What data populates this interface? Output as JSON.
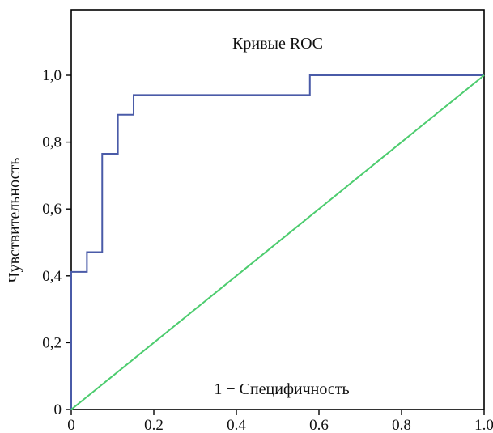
{
  "chart_data": {
    "type": "line",
    "title": "Кривые ROC",
    "xlabel": "1 − Специфичность",
    "ylabel": "Чувствительность",
    "xlim": [
      0,
      1
    ],
    "ylim": [
      0,
      1.2
    ],
    "grid": false,
    "x_ticks": [
      "0",
      "0.2",
      "0.4",
      "0.6",
      "0.8",
      "1.0"
    ],
    "y_ticks": [
      "0",
      "0,2",
      "0,4",
      "0,6",
      "0,8",
      "1,0"
    ],
    "series": [
      {
        "color": "#4a5ba8",
        "style": "step",
        "x": [
          0,
          0,
          0.038,
          0.038,
          0.075,
          0.075,
          0.113,
          0.113,
          0.151,
          0.151,
          0.578,
          0.578,
          1.0
        ],
        "y": [
          0,
          0.412,
          0.412,
          0.471,
          0.471,
          0.765,
          0.765,
          0.882,
          0.882,
          0.941,
          0.941,
          1.0,
          1.0
        ]
      },
      {
        "color": "#4ccc6e",
        "style": "line",
        "x": [
          0,
          1.0
        ],
        "y": [
          0,
          1.0
        ]
      }
    ]
  }
}
